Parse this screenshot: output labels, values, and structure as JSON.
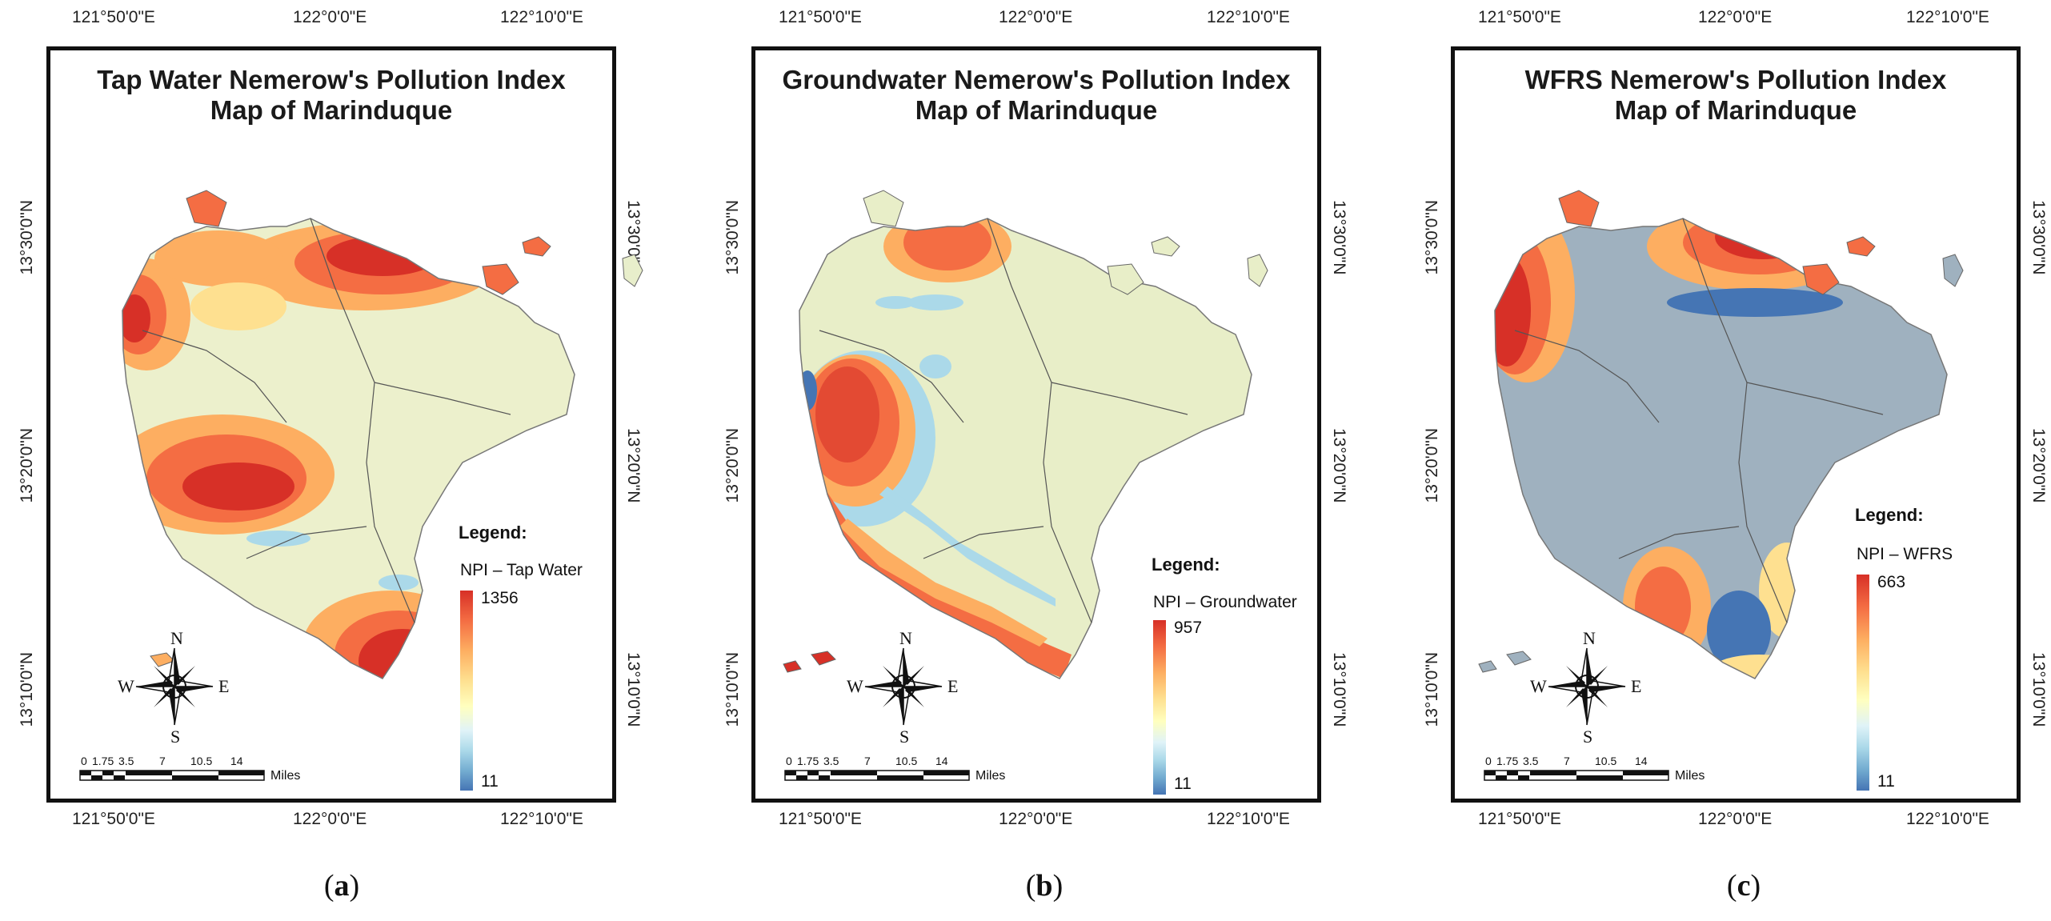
{
  "panels": [
    {
      "id": "a",
      "title_line1": "Tap Water Nemerow's Pollution Index",
      "title_line2": "Map of Marinduque",
      "legend_title": "Legend:",
      "legend_name": "NPI – Tap Water",
      "max_value": "1356",
      "min_value": "11",
      "caption_letter": "a"
    },
    {
      "id": "b",
      "title_line1": "Groundwater Nemerow's Pollution Index",
      "title_line2": "Map of Marinduque",
      "legend_title": "Legend:",
      "legend_name": "NPI – Groundwater",
      "max_value": "957",
      "min_value": "11",
      "caption_letter": "b"
    },
    {
      "id": "c",
      "title_line1": "WFRS Nemerow's Pollution Index",
      "title_line2": "Map of Marinduque",
      "legend_title": "Legend:",
      "legend_name": "NPI – WFRS",
      "max_value": "663",
      "min_value": "11",
      "caption_letter": "c"
    }
  ],
  "axes": {
    "lon_labels": [
      "121°50'0\"E",
      "122°0'0\"E",
      "122°10'0\"E"
    ],
    "lat_labels": [
      "13°30'0\"N",
      "13°20'0\"N",
      "13°10'0\"N"
    ]
  },
  "scale_bar": {
    "ticks": [
      "0",
      "1.75",
      "3.5",
      "7",
      "10.5",
      "14"
    ],
    "unit": "Miles"
  },
  "compass": {
    "n": "N",
    "s": "S",
    "e": "E",
    "w": "W"
  },
  "colors": {
    "high": "#d73027",
    "mid_high": "#f46d43",
    "mid": "#fdae61",
    "neutral": "#ffffbf",
    "pale": "#e6efc9",
    "low": "#74add1",
    "lowest": "#4575b4",
    "wfrs_base": "#9fb1bf"
  }
}
